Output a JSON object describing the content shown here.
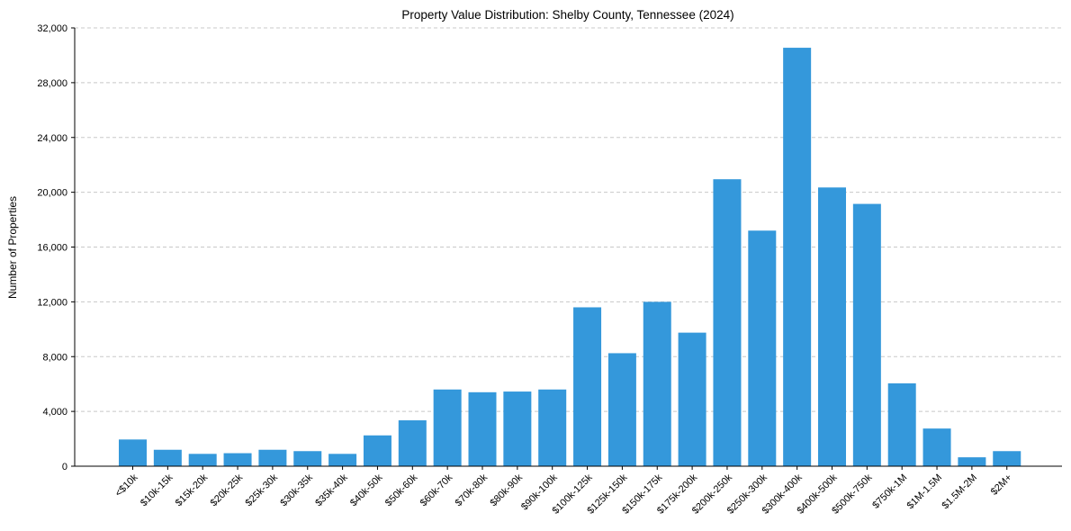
{
  "chart_data": {
    "type": "bar",
    "title": "Property Value Distribution: Shelby County, Tennessee (2024)",
    "xlabel": "",
    "ylabel": "Number of Properties",
    "ylim": [
      0,
      32000
    ],
    "yticks": [
      0,
      4000,
      8000,
      12000,
      16000,
      20000,
      24000,
      28000,
      32000
    ],
    "ytick_labels": [
      "0",
      "4,000",
      "8,000",
      "12,000",
      "16,000",
      "20,000",
      "24,000",
      "28,000",
      "32,000"
    ],
    "grid": "horizontal-dashed",
    "bar_color": "#3498db",
    "categories": [
      "<$10k",
      "$10k-15k",
      "$15k-20k",
      "$20k-25k",
      "$25k-30k",
      "$30k-35k",
      "$35k-40k",
      "$40k-50k",
      "$50k-60k",
      "$60k-70k",
      "$70k-80k",
      "$80k-90k",
      "$90k-100k",
      "$100k-125k",
      "$125k-150k",
      "$150k-175k",
      "$175k-200k",
      "$200k-250k",
      "$250k-300k",
      "$300k-400k",
      "$400k-500k",
      "$500k-750k",
      "$750k-1M",
      "$1M-1.5M",
      "$1.5M-2M",
      "$2M+"
    ],
    "values": [
      1950,
      1200,
      900,
      950,
      1200,
      1100,
      900,
      2250,
      3350,
      5600,
      5400,
      5450,
      5600,
      11600,
      8250,
      12000,
      9750,
      20950,
      17200,
      30550,
      20350,
      19150,
      6050,
      2750,
      650,
      1100
    ]
  }
}
